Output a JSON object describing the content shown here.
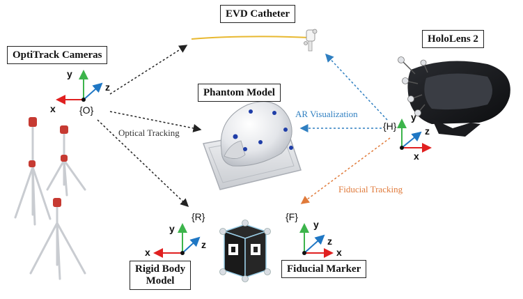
{
  "labels": {
    "evd_catheter": "EVD Catheter",
    "optitrack_cameras": "OptiTrack Cameras",
    "hololens": "HoloLens 2",
    "phantom_model": "Phantom Model",
    "rigid_body_line1": "Rigid Body",
    "rigid_body_line2": "Model",
    "fiducial_marker": "Fiducial Marker"
  },
  "frames": {
    "optitrack": "{O}",
    "hololens": "{H}",
    "rigid_body": "{R}",
    "fiducial": "{F}"
  },
  "axes": {
    "x": "x",
    "y": "y",
    "z": "z"
  },
  "annotations": {
    "ar_visualization": "AR Visualization",
    "optical_tracking": "Optical Tracking",
    "fiducial_tracking": "Fiducial Tracking"
  },
  "colors": {
    "ar_visualization": "#2f7fc1",
    "fiducial_tracking": "#e07a3a",
    "optical_tracking": "#333333",
    "x_axis": "#e02020",
    "y_axis": "#3cb44b",
    "z_axis": "#1f77c4"
  }
}
